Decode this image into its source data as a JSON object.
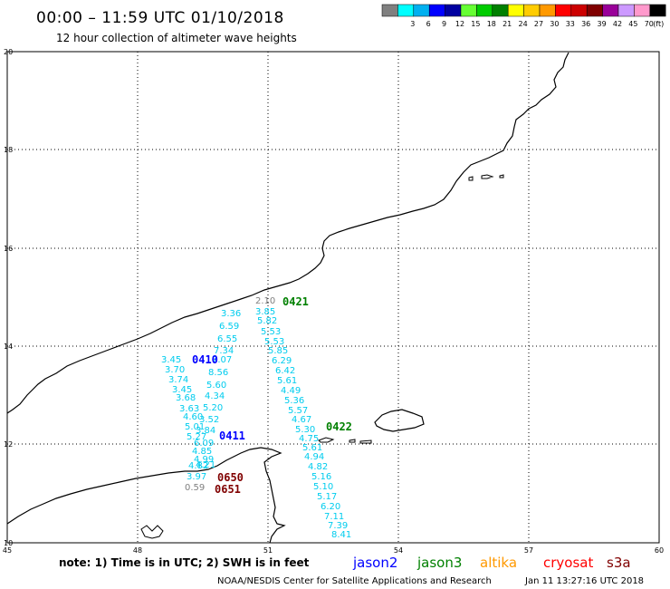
{
  "header": {
    "title": "00:00 – 11:59 UTC 01/10/2018",
    "subtitle": "12 hour collection of altimeter wave heights"
  },
  "legend": {
    "unit": "(ft)",
    "bins": [
      {
        "label": "",
        "color": "#808080"
      },
      {
        "label": "3",
        "color": "#00ffff"
      },
      {
        "label": "6",
        "color": "#00b0f0"
      },
      {
        "label": "9",
        "color": "#0000ff"
      },
      {
        "label": "12",
        "color": "#0000a0"
      },
      {
        "label": "15",
        "color": "#66ff33"
      },
      {
        "label": "18",
        "color": "#00cc00"
      },
      {
        "label": "21",
        "color": "#008000"
      },
      {
        "label": "24",
        "color": "#ffff00"
      },
      {
        "label": "27",
        "color": "#ffcc00"
      },
      {
        "label": "30",
        "color": "#ff9900"
      },
      {
        "label": "33",
        "color": "#ff0000"
      },
      {
        "label": "36",
        "color": "#cc0000"
      },
      {
        "label": "39",
        "color": "#800000"
      },
      {
        "label": "42",
        "color": "#990099"
      },
      {
        "label": "45",
        "color": "#cc99ff"
      },
      {
        "label": "70",
        "color": "#ff99cc"
      },
      {
        "label": "",
        "color": "#000000"
      }
    ]
  },
  "axes": {
    "lon_labels": [
      "45",
      "48",
      "51",
      "54",
      "57",
      "60"
    ],
    "lat_labels": [
      "20",
      "18",
      "16",
      "14",
      "12",
      "10"
    ]
  },
  "passes": [
    {
      "id": "0421",
      "satellite": "jason3",
      "color": "#008000"
    },
    {
      "id": "0422",
      "satellite": "jason3",
      "color": "#008000"
    },
    {
      "id": "0410",
      "satellite": "jason2",
      "color": "#0000ff"
    },
    {
      "id": "0411",
      "satellite": "jason2",
      "color": "#0000ff"
    },
    {
      "id": "0650",
      "satellite": "cryosat",
      "color": "#800000"
    },
    {
      "id": "0651",
      "satellite": "cryosat",
      "color": "#800000"
    }
  ],
  "observations": [
    {
      "value": "2.10",
      "color": "#808080"
    },
    {
      "value": "3.36",
      "color": "#00ccee"
    },
    {
      "value": "6.59",
      "color": "#00ccee"
    },
    {
      "value": "6.55",
      "color": "#00ccee"
    },
    {
      "value": "7.34",
      "color": "#00ccee"
    },
    {
      "value": "7.07",
      "color": "#00ccee"
    },
    {
      "value": "8.56",
      "color": "#00ccee"
    },
    {
      "value": "5.60",
      "color": "#00ccee"
    },
    {
      "value": "4.34",
      "color": "#00ccee"
    },
    {
      "value": "5.20",
      "color": "#00ccee"
    },
    {
      "value": "3.52",
      "color": "#00ccee"
    },
    {
      "value": "3.84",
      "color": "#00ccee"
    },
    {
      "value": "3.45",
      "color": "#00ccee"
    },
    {
      "value": "3.70",
      "color": "#00ccee"
    },
    {
      "value": "3.74",
      "color": "#00ccee"
    },
    {
      "value": "3.45",
      "color": "#00ccee"
    },
    {
      "value": "3.68",
      "color": "#00ccee"
    },
    {
      "value": "3.63",
      "color": "#00ccee"
    },
    {
      "value": "4.60",
      "color": "#00ccee"
    },
    {
      "value": "5.01",
      "color": "#00ccee"
    },
    {
      "value": "5.27",
      "color": "#00ccee"
    },
    {
      "value": "6.09",
      "color": "#00ccee"
    },
    {
      "value": "4.85",
      "color": "#00ccee"
    },
    {
      "value": "4.99",
      "color": "#00ccee"
    },
    {
      "value": "4.82",
      "color": "#00ccee"
    },
    {
      "value": "4.21",
      "color": "#00ccee"
    },
    {
      "value": "3.97",
      "color": "#00ccee"
    },
    {
      "value": "0.59",
      "color": "#808080"
    },
    {
      "value": "3.85",
      "color": "#00ccee"
    },
    {
      "value": "5.82",
      "color": "#00ccee"
    },
    {
      "value": "5.53",
      "color": "#00ccee"
    },
    {
      "value": "5.53",
      "color": "#00ccee"
    },
    {
      "value": "5.85",
      "color": "#00ccee"
    },
    {
      "value": "6.29",
      "color": "#00ccee"
    },
    {
      "value": "6.42",
      "color": "#00ccee"
    },
    {
      "value": "5.61",
      "color": "#00ccee"
    },
    {
      "value": "4.49",
      "color": "#00ccee"
    },
    {
      "value": "5.36",
      "color": "#00ccee"
    },
    {
      "value": "5.57",
      "color": "#00ccee"
    },
    {
      "value": "4.67",
      "color": "#00ccee"
    },
    {
      "value": "5.30",
      "color": "#00ccee"
    },
    {
      "value": "4.75",
      "color": "#00ccee"
    },
    {
      "value": "5.61",
      "color": "#00ccee"
    },
    {
      "value": "4.94",
      "color": "#00ccee"
    },
    {
      "value": "4.82",
      "color": "#00ccee"
    },
    {
      "value": "5.16",
      "color": "#00ccee"
    },
    {
      "value": "5.10",
      "color": "#00ccee"
    },
    {
      "value": "5.17",
      "color": "#00ccee"
    },
    {
      "value": "6.20",
      "color": "#00ccee"
    },
    {
      "value": "7.11",
      "color": "#00ccee"
    },
    {
      "value": "7.39",
      "color": "#00ccee"
    },
    {
      "value": "8.41",
      "color": "#00ccee"
    }
  ],
  "footer": {
    "note": "note: 1) Time is in UTC; 2) SWH is in feet",
    "satellites": [
      {
        "name": "jason2",
        "color": "#0000ff"
      },
      {
        "name": "jason3",
        "color": "#008000"
      },
      {
        "name": "altika",
        "color": "#ff9900"
      },
      {
        "name": "cryosat",
        "color": "#ff0000"
      },
      {
        "name": "s3a",
        "color": "#800000"
      }
    ],
    "credit": "NOAA/NESDIS Center for Satellite Applications and Research",
    "timestamp": "Jan 11 13:27:16 UTC 2018"
  },
  "colors": {
    "coast": "#000000",
    "grid": "#000000",
    "background": "#ffffff"
  }
}
